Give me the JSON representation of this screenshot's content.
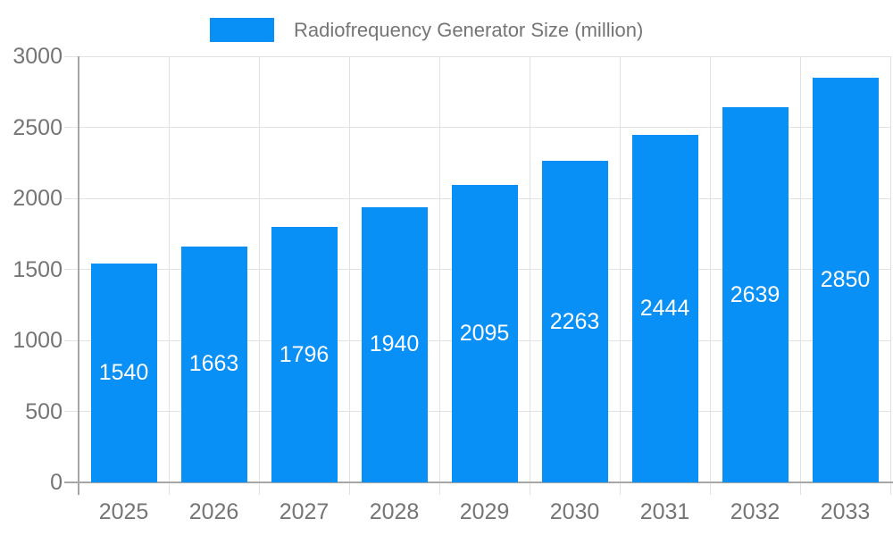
{
  "colors": {
    "bar": "#0890F7",
    "axis": "#a6a6a6",
    "grid": "#e2e2e2",
    "tick_text": "#757575",
    "legend_text": "#757575",
    "value_text": "#ffffff",
    "background": "#ffffff"
  },
  "legend": {
    "label": "Radiofrequency Generator Size (million)"
  },
  "chart_data": {
    "type": "bar",
    "title": "Radiofrequency Generator Size (million)",
    "categories": [
      "2025",
      "2026",
      "2027",
      "2028",
      "2029",
      "2030",
      "2031",
      "2032",
      "2033"
    ],
    "series": [
      {
        "name": "Radiofrequency Generator Size (million)",
        "values": [
          1540,
          1663,
          1796,
          1940,
          2095,
          2263,
          2444,
          2639,
          2850
        ]
      }
    ],
    "xlabel": "",
    "ylabel": "",
    "ylim": [
      0,
      3000
    ],
    "yticks": [
      0,
      500,
      1000,
      1500,
      2000,
      2500,
      3000
    ],
    "grid": true,
    "legend_position": "top",
    "value_label_position": "inside-center"
  }
}
